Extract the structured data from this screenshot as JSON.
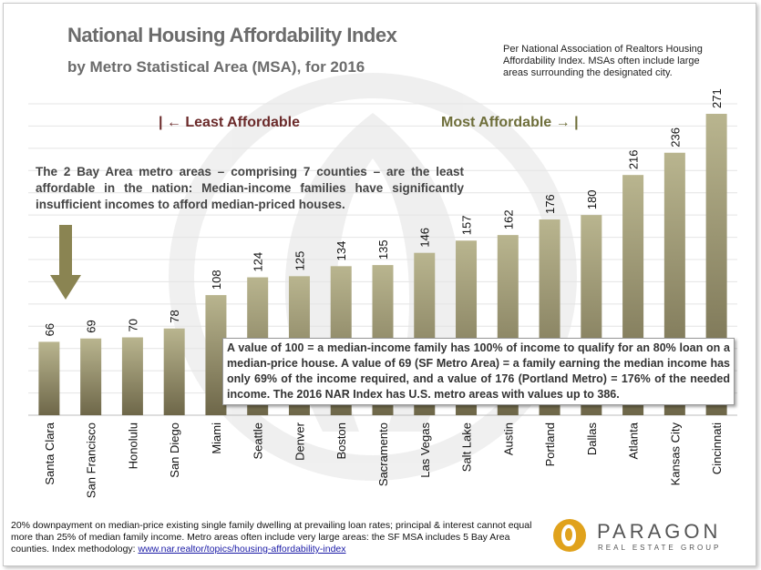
{
  "title": "National Housing Affordability Index",
  "subtitle": "by Metro Statistical Area (MSA), for 2016",
  "top_note": "Per National Association of Realtors Housing Affordability Index. MSAs often include large areas surrounding the designated city.",
  "least_label": "| ← Least Affordable",
  "most_label": "Most Affordable → |",
  "bay_area_note": "The 2 Bay Area metro areas – comprising 7 counties – are the least affordable in the nation: Median-income families have significantly insufficient incomes to afford median-priced houses.",
  "callout": "A value of 100 = a median-income family has 100% of income to qualify for an 80% loan on a median-price house. A value of 69 (SF Metro Area) = a family earning the median income has only 69% of the income required, and a value of 176 (Portland Metro) = 176% of the needed income. The 2016 NAR Index has U.S. metro areas with values up to 386.",
  "footnote_text": "20% downpayment on median-price existing single family dwelling at prevailing loan rates; principal & interest cannot equal more than 25% of median family income. Metro areas often include very large areas: the SF MSA includes 5 Bay Area counties. Index methodology: ",
  "footnote_link": "www.nar.realtor/topics/housing-affordability-index",
  "logo": {
    "name": "PARAGON",
    "tagline": "REAL ESTATE GROUP"
  },
  "colors": {
    "bar_light": "#b9b58f",
    "bar_dark": "#6e6749",
    "arrow": "#8a8452",
    "grid": "#e4e4e4"
  },
  "chart_data": {
    "type": "bar",
    "categories": [
      "Santa Clara",
      "San Francisco",
      "Honolulu",
      "San Diego",
      "Miami",
      "Seattle",
      "Denver",
      "Boston",
      "Sacramento",
      "Las Vegas",
      "Salt Lake",
      "Austin",
      "Portland",
      "Dallas",
      "Atlanta",
      "Kansas City",
      "Cincinnati"
    ],
    "values": [
      66,
      69,
      70,
      78,
      108,
      124,
      125,
      134,
      135,
      146,
      157,
      162,
      176,
      180,
      216,
      236,
      271
    ],
    "ylim": [
      0,
      280
    ],
    "grid": true,
    "data_labels": true
  }
}
